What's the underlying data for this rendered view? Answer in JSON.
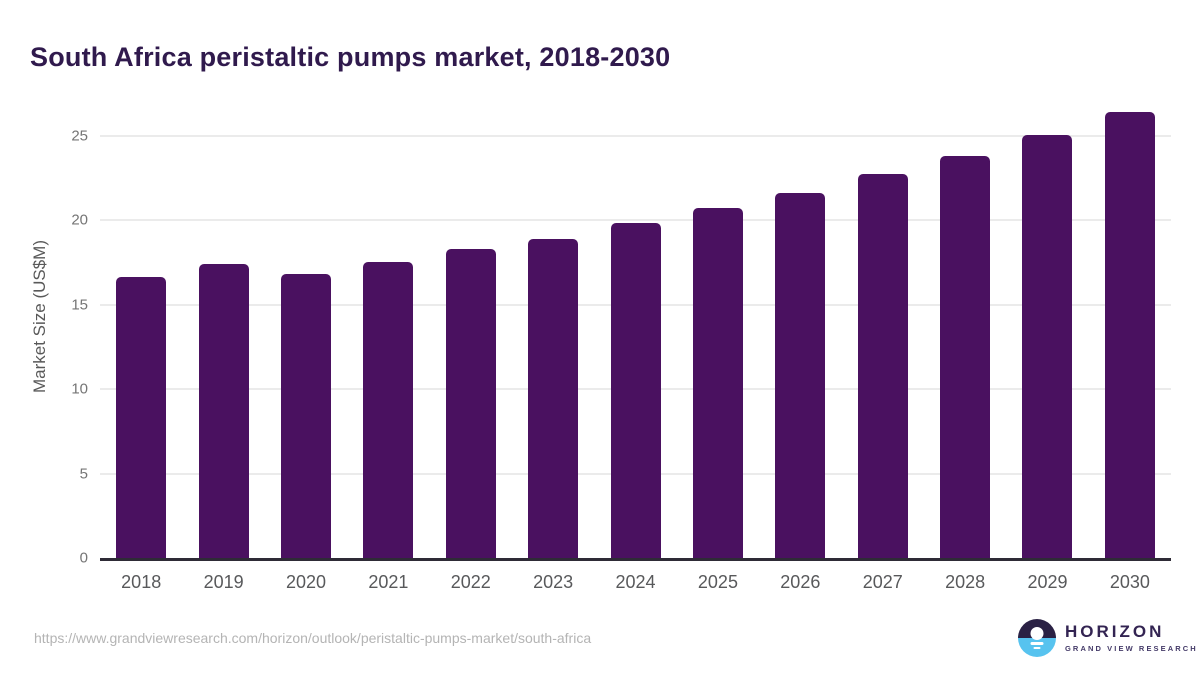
{
  "title": "South Africa peristaltic pumps market, 2018-2030",
  "chart_data": {
    "type": "bar",
    "title": "South Africa peristaltic pumps market, 2018-2030",
    "categories": [
      "2018",
      "2019",
      "2020",
      "2021",
      "2022",
      "2023",
      "2024",
      "2025",
      "2026",
      "2027",
      "2028",
      "2029",
      "2030"
    ],
    "values": [
      16.6,
      17.4,
      16.8,
      17.5,
      18.3,
      18.9,
      19.8,
      20.7,
      21.6,
      22.7,
      23.8,
      25.0,
      26.4
    ],
    "xlabel": "",
    "ylabel": "Market Size (US$M)",
    "ylim": [
      0,
      27.1
    ],
    "yticks": [
      0,
      5,
      10,
      15,
      20,
      25
    ],
    "grid": true,
    "legend": "none",
    "bar_color": "#4a1160",
    "gridline_color": "#ebebeb",
    "axis_color": "#2e2b36",
    "title_color": "#301a4d"
  },
  "footer": {
    "source_url": "https://www.grandviewresearch.com/horizon/outlook/peristaltic-pumps-market/south-africa",
    "logo": {
      "name": "HORIZON",
      "subtitle": "GRAND VIEW RESEARCH",
      "mark_top_color": "#2a2144",
      "mark_bottom_color": "#57c3ef"
    }
  }
}
